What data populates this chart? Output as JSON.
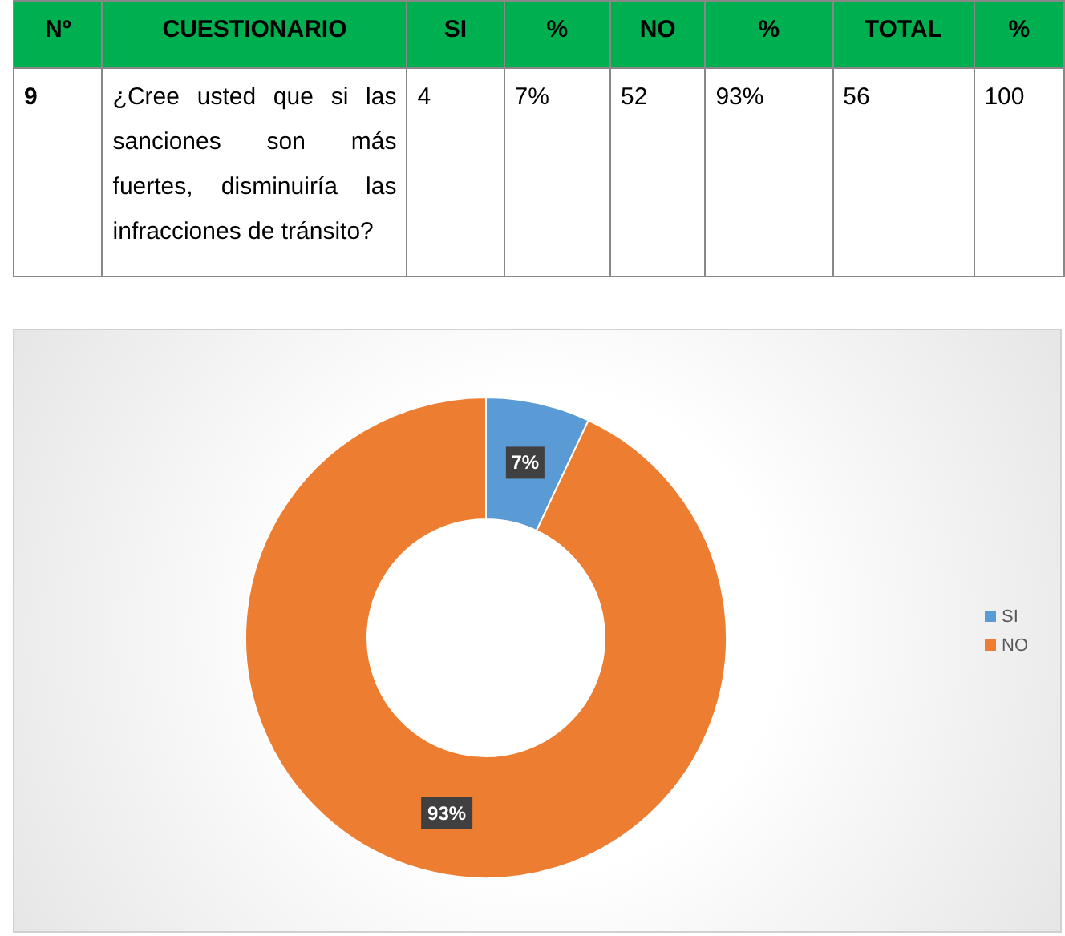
{
  "chart_data": {
    "type": "donut",
    "categories": [
      "SI",
      "NO"
    ],
    "values": [
      7,
      93
    ],
    "colors": [
      "#5b9bd5",
      "#ed7d31"
    ],
    "value_labels": [
      "7%",
      "93%"
    ],
    "legend": "right",
    "annotations": [
      "Nº",
      "CUESTIONARIO",
      "SI",
      "%",
      "NO",
      "%",
      "TOTAL",
      "%",
      "9",
      "¿Cree usted que si las sanciones son más fuertes, disminuiría las infracciones de tránsito?",
      "4",
      "7%",
      "52",
      "93%",
      "56",
      "100"
    ]
  }
}
